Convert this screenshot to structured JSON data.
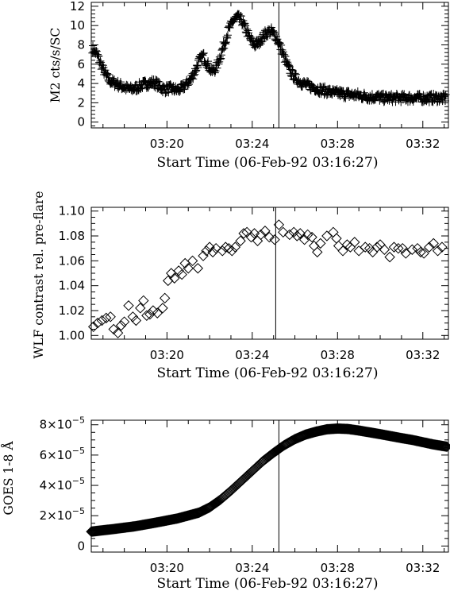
{
  "chart_data": [
    {
      "type": "scatter",
      "marker": "plus",
      "ylabel": "M2 cts/s/SC",
      "xlabel": "Start Time (06-Feb-92 03:16:27)",
      "x_unit": "minutes",
      "xlim": [
        196.45,
        213.2
      ],
      "ylim": [
        -0.6,
        12.4
      ],
      "yticks": [
        0,
        2,
        4,
        6,
        8,
        10,
        12
      ],
      "ytick_labels": [
        "0",
        "2",
        "4",
        "6",
        "8",
        "10",
        "12"
      ],
      "xticks": [
        200,
        204,
        208,
        212
      ],
      "xtick_labels": [
        "03:20",
        "03:24",
        "03:28",
        "03:32"
      ],
      "marker_time": "03:25:15",
      "marker_x": 205.25,
      "points": [
        [
          196.5,
          7.6
        ],
        [
          196.7,
          7.1
        ],
        [
          196.9,
          6.0
        ],
        [
          197.1,
          5.0
        ],
        [
          197.3,
          4.3
        ],
        [
          197.5,
          4.1
        ],
        [
          197.7,
          3.9
        ],
        [
          197.9,
          3.7
        ],
        [
          198.1,
          3.5
        ],
        [
          198.3,
          3.4
        ],
        [
          198.5,
          3.5
        ],
        [
          198.7,
          3.7
        ],
        [
          198.9,
          3.9
        ],
        [
          199.1,
          4.0
        ],
        [
          199.3,
          4.1
        ],
        [
          199.5,
          4.0
        ],
        [
          199.7,
          3.6
        ],
        [
          199.9,
          3.4
        ],
        [
          200.1,
          3.5
        ],
        [
          200.3,
          3.4
        ],
        [
          200.5,
          3.3
        ],
        [
          200.7,
          3.5
        ],
        [
          200.9,
          3.9
        ],
        [
          201.1,
          4.4
        ],
        [
          201.3,
          5.2
        ],
        [
          201.5,
          6.3
        ],
        [
          201.7,
          6.9
        ],
        [
          201.9,
          6.0
        ],
        [
          202.1,
          5.2
        ],
        [
          202.3,
          5.6
        ],
        [
          202.5,
          6.8
        ],
        [
          202.7,
          8.2
        ],
        [
          202.9,
          9.6
        ],
        [
          203.1,
          10.5
        ],
        [
          203.3,
          10.9
        ],
        [
          203.5,
          10.5
        ],
        [
          203.7,
          9.6
        ],
        [
          203.9,
          8.6
        ],
        [
          204.1,
          8.0
        ],
        [
          204.3,
          8.2
        ],
        [
          204.5,
          8.9
        ],
        [
          204.7,
          9.3
        ],
        [
          204.9,
          9.4
        ],
        [
          205.1,
          8.9
        ],
        [
          205.3,
          7.9
        ],
        [
          205.5,
          6.7
        ],
        [
          205.7,
          5.6
        ],
        [
          205.9,
          4.9
        ],
        [
          206.1,
          4.4
        ],
        [
          206.3,
          4.1
        ],
        [
          206.5,
          3.9
        ],
        [
          206.7,
          3.7
        ],
        [
          206.9,
          3.6
        ],
        [
          207.1,
          3.4
        ],
        [
          207.3,
          3.3
        ],
        [
          207.5,
          3.2
        ],
        [
          207.7,
          3.1
        ],
        [
          207.9,
          3.0
        ],
        [
          208.1,
          3.0
        ],
        [
          208.3,
          2.9
        ],
        [
          208.5,
          2.9
        ],
        [
          208.7,
          2.8
        ],
        [
          208.9,
          2.8
        ],
        [
          209.1,
          2.7
        ],
        [
          209.3,
          2.7
        ],
        [
          209.5,
          2.6
        ],
        [
          209.7,
          2.6
        ],
        [
          209.9,
          2.6
        ],
        [
          210.1,
          2.5
        ],
        [
          210.3,
          2.5
        ],
        [
          210.5,
          2.5
        ],
        [
          210.7,
          2.5
        ],
        [
          210.9,
          2.5
        ],
        [
          211.1,
          2.5
        ],
        [
          211.3,
          2.5
        ],
        [
          211.5,
          2.5
        ],
        [
          211.7,
          2.5
        ],
        [
          211.9,
          2.5
        ],
        [
          212.1,
          2.5
        ],
        [
          212.3,
          2.5
        ],
        [
          212.5,
          2.5
        ],
        [
          212.7,
          2.5
        ],
        [
          212.9,
          2.5
        ],
        [
          213.1,
          2.5
        ]
      ]
    },
    {
      "type": "scatter",
      "marker": "diamond",
      "ylabel": "WLF contrast rel. pre-flare",
      "xlabel": "Start Time (06-Feb-92 03:16:27)",
      "x_unit": "minutes",
      "xlim": [
        196.45,
        213.2
      ],
      "ylim": [
        0.997,
        1.103
      ],
      "yticks": [
        1.0,
        1.02,
        1.04,
        1.06,
        1.08,
        1.1
      ],
      "ytick_labels": [
        "1.00",
        "1.02",
        "1.04",
        "1.06",
        "1.08",
        "1.10"
      ],
      "xticks": [
        200,
        204,
        208,
        212
      ],
      "xtick_labels": [
        "03:20",
        "03:24",
        "03:28",
        "03:32"
      ],
      "marker_time": "03:25:06",
      "marker_x": 205.1,
      "points": [
        [
          196.55,
          1.007
        ],
        [
          196.75,
          1.01
        ],
        [
          196.95,
          1.012
        ],
        [
          197.15,
          1.014
        ],
        [
          197.35,
          1.015
        ],
        [
          197.5,
          1.005
        ],
        [
          197.7,
          1.002
        ],
        [
          197.85,
          1.008
        ],
        [
          198.0,
          1.011
        ],
        [
          198.2,
          1.024
        ],
        [
          198.4,
          1.015
        ],
        [
          198.55,
          1.012
        ],
        [
          198.75,
          1.022
        ],
        [
          198.9,
          1.028
        ],
        [
          199.05,
          1.016
        ],
        [
          199.2,
          1.017
        ],
        [
          199.35,
          1.02
        ],
        [
          199.55,
          1.018
        ],
        [
          199.8,
          1.022
        ],
        [
          199.9,
          1.03
        ],
        [
          200.05,
          1.044
        ],
        [
          200.2,
          1.05
        ],
        [
          200.35,
          1.046
        ],
        [
          200.55,
          1.052
        ],
        [
          200.7,
          1.049
        ],
        [
          200.85,
          1.058
        ],
        [
          201.0,
          1.054
        ],
        [
          201.2,
          1.06
        ],
        [
          201.45,
          1.054
        ],
        [
          201.7,
          1.064
        ],
        [
          201.85,
          1.068
        ],
        [
          202.0,
          1.071
        ],
        [
          202.15,
          1.067
        ],
        [
          202.3,
          1.07
        ],
        [
          202.6,
          1.068
        ],
        [
          202.75,
          1.071
        ],
        [
          202.9,
          1.07
        ],
        [
          203.05,
          1.068
        ],
        [
          203.2,
          1.071
        ],
        [
          203.45,
          1.076
        ],
        [
          203.6,
          1.082
        ],
        [
          203.75,
          1.083
        ],
        [
          203.95,
          1.079
        ],
        [
          204.1,
          1.082
        ],
        [
          204.25,
          1.076
        ],
        [
          204.4,
          1.081
        ],
        [
          204.6,
          1.084
        ],
        [
          204.8,
          1.079
        ],
        [
          205.05,
          1.077
        ],
        [
          205.25,
          1.089
        ],
        [
          205.45,
          1.083
        ],
        [
          205.75,
          1.081
        ],
        [
          205.95,
          1.083
        ],
        [
          206.1,
          1.08
        ],
        [
          206.25,
          1.082
        ],
        [
          206.45,
          1.077
        ],
        [
          206.6,
          1.081
        ],
        [
          206.8,
          1.079
        ],
        [
          206.9,
          1.072
        ],
        [
          207.05,
          1.067
        ],
        [
          207.2,
          1.074
        ],
        [
          207.5,
          1.08
        ],
        [
          207.8,
          1.083
        ],
        [
          207.95,
          1.078
        ],
        [
          208.05,
          1.072
        ],
        [
          208.25,
          1.068
        ],
        [
          208.45,
          1.073
        ],
        [
          208.6,
          1.071
        ],
        [
          208.8,
          1.075
        ],
        [
          209.0,
          1.068
        ],
        [
          209.3,
          1.071
        ],
        [
          209.5,
          1.07
        ],
        [
          209.65,
          1.067
        ],
        [
          209.85,
          1.071
        ],
        [
          210.0,
          1.073
        ],
        [
          210.2,
          1.069
        ],
        [
          210.45,
          1.063
        ],
        [
          210.65,
          1.071
        ],
        [
          210.85,
          1.07
        ],
        [
          211.05,
          1.07
        ],
        [
          211.2,
          1.066
        ],
        [
          211.5,
          1.069
        ],
        [
          211.75,
          1.07
        ],
        [
          211.9,
          1.067
        ],
        [
          212.05,
          1.066
        ],
        [
          212.3,
          1.071
        ],
        [
          212.5,
          1.074
        ],
        [
          212.7,
          1.068
        ],
        [
          212.9,
          1.071
        ]
      ]
    },
    {
      "type": "scatter",
      "marker": "diamond",
      "ylabel": "GOES 1-8 Å",
      "xlabel": "Start Time (06-Feb-92 03:16:27)",
      "x_unit": "minutes",
      "xlim": [
        196.45,
        213.2
      ],
      "ylim": [
        -4e-06,
        8.3e-05
      ],
      "yticks": [
        0,
        2e-05,
        4e-05,
        6e-05,
        8e-05
      ],
      "ytick_mantissas": [
        "2",
        "4",
        "6",
        "8"
      ],
      "ytick_zero_label": "0",
      "ytick_times": "×10",
      "ytick_exponent": "−5",
      "xticks": [
        200,
        204,
        208,
        212
      ],
      "xtick_labels": [
        "03:20",
        "03:24",
        "03:28",
        "03:32"
      ],
      "marker_time": "03:25:15",
      "marker_x": 205.25,
      "dense_series": {
        "start": 196.45,
        "end": 213.15,
        "step": 0.04,
        "knots": [
          [
            196.45,
            9.5e-06
          ],
          [
            197.5,
            1.12e-05
          ],
          [
            198.5,
            1.3e-05
          ],
          [
            199.5,
            1.55e-05
          ],
          [
            200.5,
            1.82e-05
          ],
          [
            201.5,
            2.2e-05
          ],
          [
            202.0,
            2.55e-05
          ],
          [
            202.5,
            3.05e-05
          ],
          [
            203.0,
            3.65e-05
          ],
          [
            203.5,
            4.3e-05
          ],
          [
            204.0,
            4.95e-05
          ],
          [
            204.5,
            5.6e-05
          ],
          [
            205.0,
            6.15e-05
          ],
          [
            205.5,
            6.65e-05
          ],
          [
            206.0,
            7.05e-05
          ],
          [
            206.5,
            7.35e-05
          ],
          [
            207.0,
            7.55e-05
          ],
          [
            207.5,
            7.7e-05
          ],
          [
            208.0,
            7.75e-05
          ],
          [
            208.5,
            7.72e-05
          ],
          [
            209.0,
            7.62e-05
          ],
          [
            209.5,
            7.5e-05
          ],
          [
            210.0,
            7.38e-05
          ],
          [
            210.5,
            7.25e-05
          ],
          [
            211.0,
            7.12e-05
          ],
          [
            211.5,
            7e-05
          ],
          [
            212.0,
            6.85e-05
          ],
          [
            212.5,
            6.7e-05
          ],
          [
            213.15,
            6.55e-05
          ]
        ]
      }
    }
  ]
}
